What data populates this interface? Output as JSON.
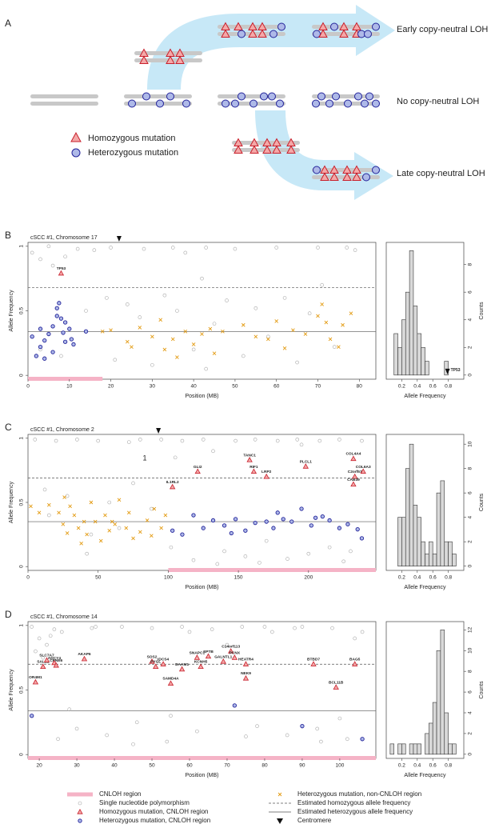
{
  "diagram": {
    "panel_label": "A",
    "early": "Early copy-neutral LOH",
    "none": "No copy-neutral LOH",
    "late": "Late copy-neutral LOH",
    "homozygous": "Homozygous mutation",
    "heterozygous": "Heterozygous mutation"
  },
  "chart_data": [
    {
      "type": "scatter",
      "panel_label": "B",
      "title": "cSCC #1, Chromosome 17",
      "x_label": "Position (MB)",
      "y_label": "Allele Frequency",
      "xlim": [
        0,
        84
      ],
      "ylim": [
        -0.03,
        1.03
      ],
      "xticks": [
        0,
        10,
        20,
        30,
        40,
        50,
        60,
        70,
        80
      ],
      "yticks": [
        0,
        0.5,
        1
      ],
      "cnloh_region": {
        "name": "CNLOH region",
        "color": "#f5b3c6",
        "ranges": [
          [
            0,
            18
          ]
        ]
      },
      "centromere": {
        "name": "Centromere",
        "x": 22
      },
      "hlines": [
        {
          "name": "Estimated homozygous allele frequency",
          "value": 0.68,
          "style": "dashed"
        },
        {
          "name": "Estimated heterozygous allele frequency",
          "value": 0.34,
          "style": "solid"
        }
      ],
      "series": [
        {
          "name": "Single nucleotide polymorphism",
          "marker": "circle-open",
          "color": "#a8a8a8",
          "x": [
            1,
            3,
            5,
            6,
            9,
            12,
            14,
            16,
            19,
            21,
            24,
            27,
            30,
            33,
            36,
            38,
            40,
            42,
            43,
            45,
            48,
            52,
            55,
            58,
            62,
            65,
            68,
            71,
            74,
            77,
            3,
            8,
            20,
            28,
            35,
            43,
            50,
            60,
            70,
            79
          ],
          "values": [
            0.95,
            0.9,
            1,
            0.85,
            0.92,
            0.98,
            0.5,
            0.97,
            0.6,
            0.12,
            0.55,
            0.45,
            0.08,
            0.62,
            0.5,
            0.95,
            0.2,
            0.75,
            0.05,
            0.4,
            0.58,
            0.15,
            0.52,
            0.3,
            0.6,
            0.1,
            0.48,
            0.7,
            0.22,
            0.99,
            0.2,
            0.15,
            0.99,
            0.98,
            0.99,
            0.99,
            0.98,
            0.99,
            0.99,
            0.97
          ]
        },
        {
          "name": "Homozygous mutation, CNLOH region",
          "marker": "triangle",
          "color": "#c8202c",
          "x": [
            8
          ],
          "values": [
            0.79
          ],
          "labels": [
            "TP53"
          ]
        },
        {
          "name": "Heterozygous mutation, CNLOH region",
          "marker": "circle",
          "color": "#23239a",
          "x": [
            1,
            2,
            3,
            4,
            5,
            6,
            7,
            7.5,
            8,
            8.5,
            9,
            10,
            10.5,
            11,
            6,
            7,
            4,
            9,
            14,
            3
          ],
          "values": [
            0.3,
            0.15,
            0.36,
            0.27,
            0.32,
            0.38,
            0.52,
            0.56,
            0.44,
            0.33,
            0.26,
            0.36,
            0.28,
            0.24,
            0.18,
            0.46,
            0.13,
            0.41,
            0.34,
            0.22
          ]
        },
        {
          "name": "Heterozygous mutation, non-CNLOH region",
          "marker": "x",
          "color": "#e39b12",
          "x": [
            18,
            20,
            24,
            25,
            27,
            30,
            32,
            33,
            35,
            36,
            38,
            40,
            42,
            44,
            47,
            52,
            55,
            58,
            62,
            64,
            67,
            70,
            71,
            72,
            73,
            75,
            76,
            78,
            45,
            60
          ],
          "values": [
            0.34,
            0.35,
            0.26,
            0.22,
            0.37,
            0.3,
            0.43,
            0.2,
            0.28,
            0.14,
            0.34,
            0.24,
            0.32,
            0.36,
            0.34,
            0.39,
            0.3,
            0.28,
            0.21,
            0.35,
            0.32,
            0.46,
            0.55,
            0.41,
            0.28,
            0.22,
            0.39,
            0.48,
            0.17,
            0.42
          ]
        }
      ]
    },
    {
      "type": "histogram",
      "x_label": "Allele Frequency",
      "y_label": "Counts",
      "color": "#d9d9d9",
      "bins": [
        0.1,
        0.15,
        0.2,
        0.25,
        0.3,
        0.35,
        0.4,
        0.45,
        0.5,
        0.55,
        0.6,
        0.65,
        0.7,
        0.75,
        0.8
      ],
      "values": [
        3,
        2,
        4,
        6,
        9,
        5,
        3,
        2,
        1,
        0,
        0,
        0,
        0,
        1
      ],
      "xlim": [
        0,
        1
      ],
      "ylim": [
        -0.3,
        9.6
      ],
      "xticks": [
        0.2,
        0.4,
        0.6,
        0.8
      ],
      "yticks": [
        0,
        2,
        4,
        6,
        8
      ],
      "markers": [
        {
          "x": 0.79,
          "label": "TP53"
        }
      ]
    },
    {
      "type": "scatter",
      "panel_label": "C",
      "title": "cSCC #1, Chromosome 2",
      "x_label": "Position (MB)",
      "y_label": "Allele Frequency",
      "xlim": [
        0,
        248
      ],
      "ylim": [
        -0.03,
        1.03
      ],
      "xticks": [
        0,
        50,
        100,
        150,
        200
      ],
      "yticks": [
        0,
        0.5,
        1
      ],
      "cnloh_region": {
        "color": "#f5b3c6",
        "ranges": [
          [
            100,
            248
          ]
        ]
      },
      "centromere": {
        "x": 93
      },
      "annotations": [
        "1"
      ],
      "hlines": [
        {
          "value": 0.69,
          "style": "dashed"
        },
        {
          "value": 0.35,
          "style": "solid"
        }
      ],
      "series": [
        {
          "marker": "circle-open",
          "color": "#a8a8a8",
          "x": [
            5,
            12,
            20,
            28,
            35,
            42,
            50,
            58,
            65,
            72,
            80,
            88,
            95,
            102,
            110,
            118,
            125,
            132,
            140,
            148,
            155,
            162,
            170,
            178,
            185,
            192,
            200,
            208,
            215,
            222,
            230,
            238,
            15,
            45,
            75,
            105,
            135,
            165,
            195,
            225
          ],
          "values": [
            0.99,
            0.6,
            0.98,
            0.55,
            0.99,
            0.1,
            0.98,
            0.5,
            0.3,
            0.97,
            0.99,
            0.45,
            0.99,
            0.15,
            0.98,
            0.05,
            0.99,
            0.9,
            0.12,
            0.98,
            0.08,
            0.99,
            0.2,
            0.98,
            0.06,
            0.99,
            0.1,
            0.98,
            0.15,
            0.99,
            0.12,
            0.98,
            0.4,
            0.25,
            0.65,
            0.85,
            0.02,
            0.03,
            0.95,
            0.04
          ]
        },
        {
          "marker": "triangle",
          "color": "#c8202c",
          "x": [
            103,
            121,
            158,
            161,
            170,
            198,
            232,
            233,
            239,
            232
          ],
          "values": [
            0.62,
            0.74,
            0.83,
            0.74,
            0.7,
            0.78,
            0.84,
            0.7,
            0.74,
            0.64
          ],
          "labels": [
            "IL1RL2",
            "GLI2",
            "TANC1",
            "RIF1",
            "LRP2",
            "PLCL1",
            "COL4A4",
            "C2orf57",
            "COL6A3",
            "CAB39"
          ]
        },
        {
          "marker": "circle",
          "color": "#23239a",
          "x": [
            103,
            110,
            118,
            125,
            132,
            140,
            148,
            155,
            162,
            170,
            175,
            182,
            188,
            195,
            202,
            210,
            215,
            222,
            228,
            235,
            238,
            145,
            178,
            205
          ],
          "values": [
            0.28,
            0.25,
            0.4,
            0.3,
            0.36,
            0.32,
            0.37,
            0.28,
            0.34,
            0.35,
            0.3,
            0.37,
            0.35,
            0.45,
            0.32,
            0.39,
            0.36,
            0.3,
            0.33,
            0.29,
            0.22,
            0.26,
            0.42,
            0.38
          ]
        },
        {
          "marker": "x",
          "color": "#e39b12",
          "x": [
            2,
            8,
            15,
            22,
            25,
            28,
            30,
            33,
            36,
            40,
            42,
            45,
            48,
            52,
            55,
            58,
            62,
            65,
            70,
            75,
            80,
            85,
            90,
            95,
            98,
            26,
            38,
            60,
            72,
            88
          ],
          "values": [
            0.47,
            0.42,
            0.48,
            0.42,
            0.33,
            0.26,
            0.47,
            0.4,
            0.3,
            0.35,
            0.25,
            0.5,
            0.35,
            0.2,
            0.4,
            0.28,
            0.33,
            0.52,
            0.3,
            0.22,
            0.27,
            0.36,
            0.45,
            0.3,
            0.4,
            0.54,
            0.18,
            0.35,
            0.42,
            0.24
          ]
        }
      ]
    },
    {
      "type": "histogram",
      "x_label": "Allele Frequency",
      "y_label": "Counts",
      "color": "#d9d9d9",
      "bins": [
        0.15,
        0.2,
        0.25,
        0.3,
        0.35,
        0.4,
        0.45,
        0.5,
        0.55,
        0.6,
        0.65,
        0.7,
        0.75,
        0.8,
        0.85,
        0.9
      ],
      "values": [
        4,
        4,
        8,
        10,
        5,
        4,
        2,
        1,
        2,
        1,
        6,
        7,
        2,
        2,
        1
      ],
      "xlim": [
        0,
        1
      ],
      "ylim": [
        -0.35,
        10.8
      ],
      "xticks": [
        0.2,
        0.4,
        0.6,
        0.8
      ],
      "yticks": [
        0,
        2,
        4,
        6,
        8,
        10
      ]
    },
    {
      "type": "scatter",
      "panel_label": "D",
      "title": "cSCC #1, Chromosome 14",
      "x_label": "Position (MB)",
      "y_label": "Allele Frequency",
      "xlim": [
        17,
        109.6
      ],
      "ylim": [
        -0.03,
        1.03
      ],
      "xticks": [
        20,
        30,
        40,
        50,
        60,
        70,
        80,
        90,
        100
      ],
      "yticks": [
        0,
        0.5,
        1
      ],
      "cnloh_region": {
        "color": "#f5b3c6",
        "ranges": [
          [
            17,
            109.6
          ]
        ]
      },
      "hlines": [
        {
          "value": 0.7,
          "style": "dashed"
        },
        {
          "value": 0.34,
          "style": "solid"
        }
      ],
      "series": [
        {
          "marker": "circle-open",
          "color": "#a8a8a8",
          "x": [
            18,
            20,
            22,
            24,
            26,
            30,
            34,
            38,
            42,
            46,
            50,
            54,
            58,
            62,
            66,
            70,
            74,
            78,
            82,
            86,
            90,
            94,
            98,
            102,
            106,
            19,
            23,
            28,
            45,
            60,
            75,
            88,
            100,
            21,
            25,
            35,
            55,
            80,
            95,
            104
          ],
          "values": [
            0.99,
            0.9,
            0.85,
            0.97,
            0.95,
            0.2,
            0.98,
            0.15,
            0.99,
            0.25,
            0.98,
            0.1,
            0.99,
            0.18,
            0.97,
            0.85,
            0.99,
            0.22,
            0.95,
            0.15,
            0.99,
            0.2,
            0.98,
            0.12,
            0.95,
            0.8,
            0.92,
            0.35,
            0.08,
            0.95,
            0.14,
            0.98,
            0.28,
            0.75,
            0.12,
            0.99,
            0.3,
            0.99,
            0.1,
            0.9
          ]
        },
        {
          "marker": "triangle",
          "color": "#c8202c",
          "x": [
            19,
            21,
            22,
            24,
            24.5,
            32,
            50,
            51,
            53,
            55,
            58,
            62,
            63,
            65,
            69,
            71,
            72,
            75,
            75,
            93,
            99,
            104
          ],
          "values": [
            0.56,
            0.68,
            0.73,
            0.71,
            0.69,
            0.74,
            0.72,
            0.68,
            0.7,
            0.55,
            0.66,
            0.75,
            0.68,
            0.76,
            0.72,
            0.8,
            0.75,
            0.59,
            0.7,
            0.7,
            0.52,
            0.7
          ],
          "labels": [
            "OR4M1",
            "SALL2",
            "SLC7A7",
            "ADCY4",
            "CPNE6",
            "AKAP6",
            "SOS2",
            "PYGL",
            "IDCS4",
            "SAMD4A",
            "DAAM1",
            "SNAPC1",
            "KCNH5",
            "SPTB",
            "GALNTL1",
            "C14orf113",
            "PCNX",
            "NEK9",
            "HEATR4",
            "BTBD7",
            "BCL11B",
            "BAG5"
          ]
        },
        {
          "marker": "circle",
          "color": "#23239a",
          "x": [
            18,
            72,
            90,
            106
          ],
          "values": [
            0.3,
            0.38,
            0.22,
            0.12
          ]
        },
        {
          "marker": "x",
          "color": "#e39b12",
          "x": [],
          "values": []
        }
      ]
    },
    {
      "type": "histogram",
      "x_label": "Allele Frequency",
      "y_label": "Counts",
      "color": "#d9d9d9",
      "bins": [
        0.05,
        0.1,
        0.15,
        0.2,
        0.25,
        0.3,
        0.35,
        0.4,
        0.45,
        0.5,
        0.55,
        0.6,
        0.65,
        0.7,
        0.75,
        0.8,
        0.85,
        0.9
      ],
      "values": [
        1,
        0,
        1,
        1,
        0,
        1,
        1,
        1,
        0,
        2,
        3,
        5,
        10,
        12,
        4,
        1,
        1
      ],
      "xlim": [
        0,
        1
      ],
      "ylim": [
        -0.4,
        12.8
      ],
      "xticks": [
        0.2,
        0.4,
        0.6,
        0.8
      ],
      "yticks": [
        0,
        2,
        4,
        6,
        8,
        10,
        12
      ]
    }
  ]
}
